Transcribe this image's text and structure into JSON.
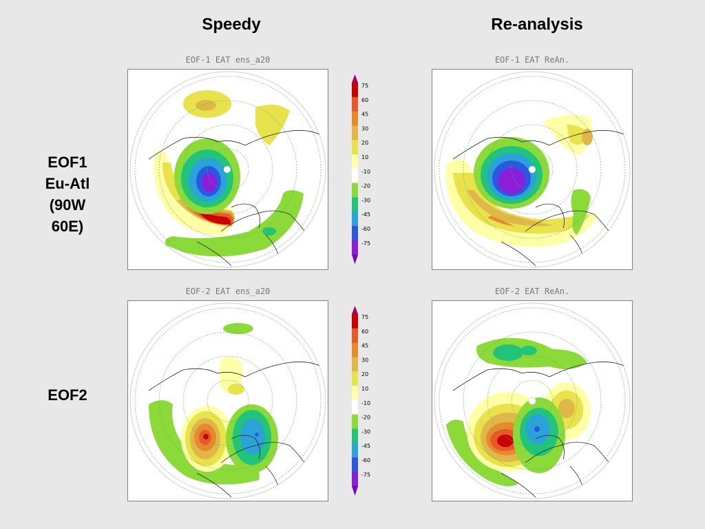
{
  "columns": {
    "speedy": "Speedy",
    "reanalysis": "Re-analysis"
  },
  "rows": {
    "eof1_lines": [
      "EOF1",
      "Eu-Atl",
      "(90W",
      "60E)"
    ],
    "eof2": "EOF2"
  },
  "panels": {
    "eof1_speedy": "EOF-1 EAT  ens_a20",
    "eof1_reanalysis": "EOF-1 EAT  ReAn.",
    "eof2_speedy": "EOF-2 EAT ens_a20",
    "eof2_reanalysis": "EOF-2 EAT  ReAn."
  },
  "colorbar": {
    "levels": [
      "75",
      "60",
      "45",
      "30",
      "20",
      "10",
      "-10",
      "-20",
      "-30",
      "-45",
      "-60",
      "-75"
    ],
    "colors": [
      "#cc0000",
      "#e8592a",
      "#e68a2e",
      "#e0b84a",
      "#e8e34d",
      "#ffffa8",
      "#ffffff",
      "#8cd93a",
      "#22c47a",
      "#2aa3d9",
      "#2a59e0",
      "#8a1fd9"
    ],
    "top_arrow_color": "#a0006e",
    "bottom_arrow_color": "#7a00c8"
  }
}
